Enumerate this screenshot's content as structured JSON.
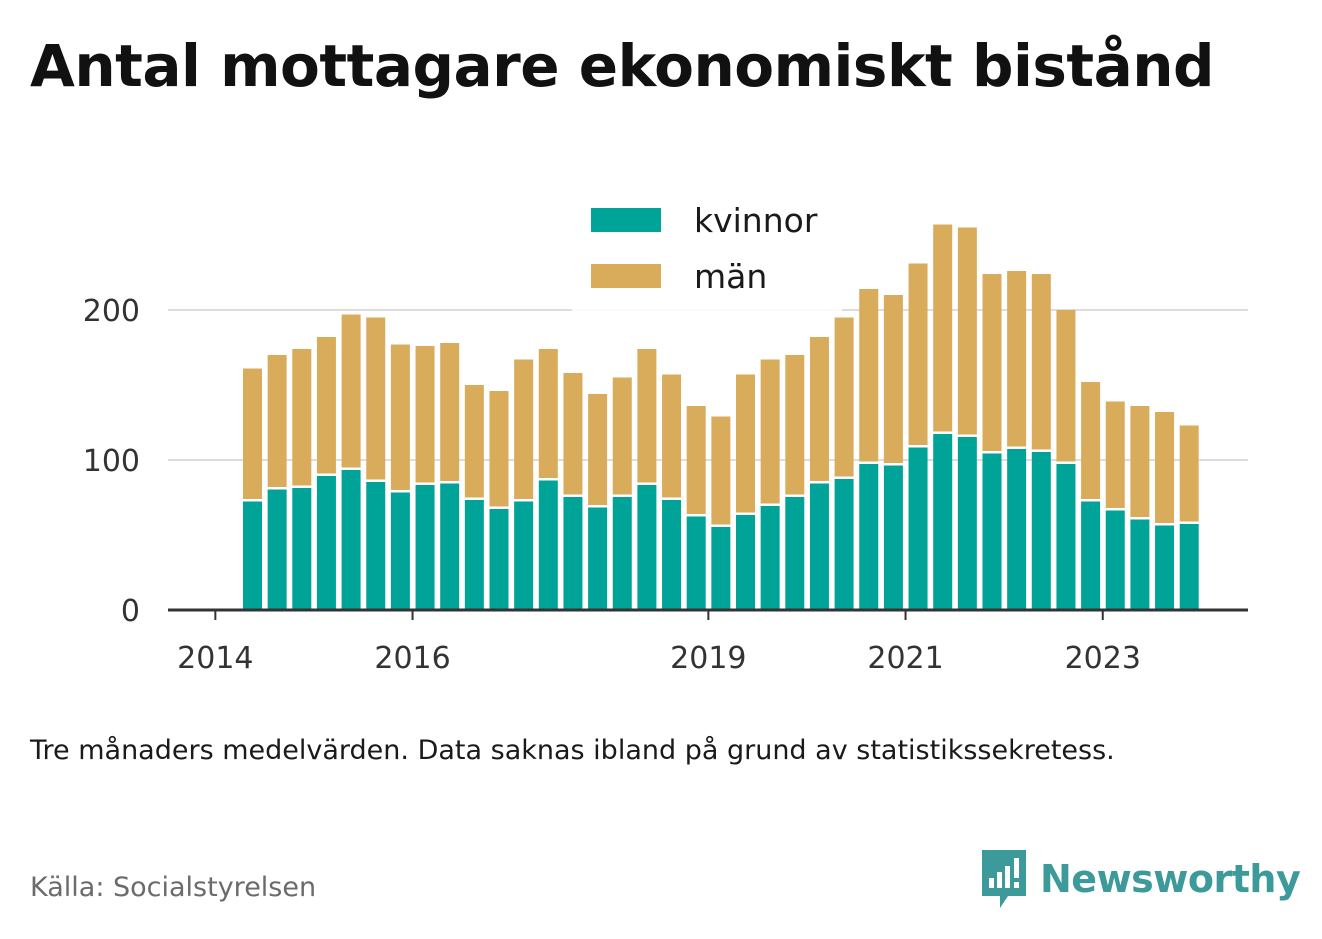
{
  "title": "Antal mottagare ekonomiskt bistånd",
  "note": "Tre månaders medelvärden. Data saknas ibland på grund av statistikssekretess.",
  "source": "Källa: Socialstyrelsen",
  "brand": {
    "name": "Newsworthy",
    "icon": "newsworthy-logo-icon",
    "color": "#3c9a9a"
  },
  "chart_data": {
    "type": "bar",
    "stacked": true,
    "xlabel": "",
    "ylabel": "",
    "ylim": [
      0,
      250
    ],
    "yticks": [
      0,
      100,
      200
    ],
    "xticks": [
      "2014",
      "2016",
      "2019",
      "2021",
      "2023"
    ],
    "grid": true,
    "legend_position": "top-center",
    "categories": [
      "2014-Q2",
      "2014-Q3",
      "2014-Q4",
      "2015-Q1",
      "2015-Q2",
      "2015-Q3",
      "2015-Q4",
      "2016-Q1",
      "2016-Q2",
      "2016-Q3",
      "2016-Q4",
      "2017-Q1",
      "2017-Q2",
      "2017-Q3",
      "2017-Q4",
      "2018-Q1",
      "2018-Q2",
      "2018-Q3",
      "2018-Q4",
      "2019-Q1",
      "2019-Q2",
      "2019-Q3",
      "2019-Q4",
      "2020-Q1",
      "2020-Q2",
      "2020-Q3",
      "2020-Q4",
      "2021-Q1",
      "2021-Q2",
      "2021-Q3",
      "2021-Q4",
      "2022-Q1",
      "2022-Q2",
      "2022-Q3",
      "2022-Q4",
      "2023-Q1",
      "2023-Q2",
      "2023-Q3",
      "2023-Q4"
    ],
    "series": [
      {
        "name": "kvinnor",
        "color": "#00a398",
        "values": [
          73,
          81,
          82,
          90,
          94,
          86,
          79,
          84,
          85,
          74,
          68,
          73,
          87,
          76,
          69,
          76,
          84,
          74,
          63,
          56,
          64,
          70,
          76,
          85,
          88,
          98,
          97,
          109,
          118,
          116,
          105,
          108,
          106,
          98,
          73,
          67,
          61,
          57,
          58
        ]
      },
      {
        "name": "män",
        "color": "#d9ac5b",
        "values": [
          88,
          89,
          92,
          92,
          103,
          109,
          98,
          92,
          93,
          76,
          78,
          94,
          87,
          82,
          75,
          79,
          90,
          83,
          73,
          73,
          93,
          97,
          94,
          97,
          107,
          116,
          113,
          122,
          139,
          139,
          119,
          118,
          118,
          102,
          79,
          72,
          75,
          75,
          65
        ]
      }
    ]
  }
}
